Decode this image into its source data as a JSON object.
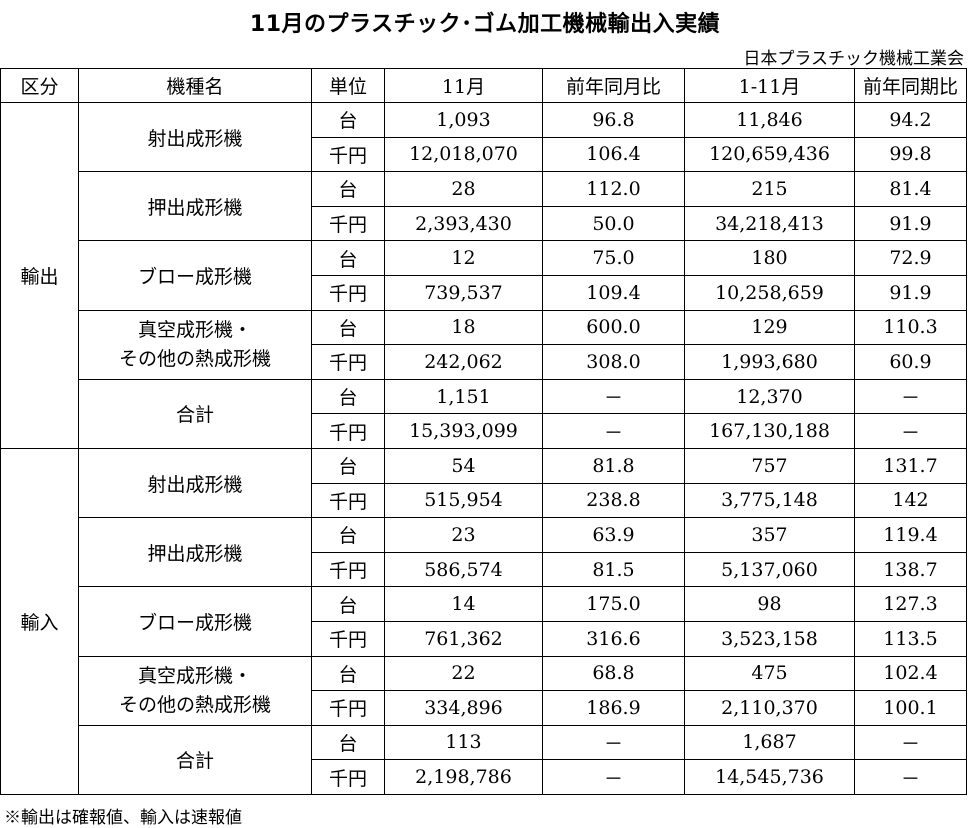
{
  "title": "11月のプラスチック･ゴム加工機械輸出入実績",
  "source": "日本プラスチック機械工業会",
  "headers": [
    "区分",
    "機種名",
    "単位",
    "11月",
    "前年同月比",
    "1-11月",
    "前年同期比"
  ],
  "sections": [
    {
      "name": "輸出",
      "machines": [
        {
          "name": [
            "射出成形機"
          ],
          "rows": [
            {
              "unit": "台",
              "month": "1,093",
              "yoy_month": "96.8",
              "ytd": "11,846",
              "yoy_ytd": "94.2"
            },
            {
              "unit": "千円",
              "month": "12,018,070",
              "yoy_month": "106.4",
              "ytd": "120,659,436",
              "yoy_ytd": "99.8"
            }
          ]
        },
        {
          "name": [
            "押出成形機"
          ],
          "rows": [
            {
              "unit": "台",
              "month": "28",
              "yoy_month": "112.0",
              "ytd": "215",
              "yoy_ytd": "81.4"
            },
            {
              "unit": "千円",
              "month": "2,393,430",
              "yoy_month": "50.0",
              "ytd": "34,218,413",
              "yoy_ytd": "91.9"
            }
          ]
        },
        {
          "name": [
            "ブロー成形機"
          ],
          "rows": [
            {
              "unit": "台",
              "month": "12",
              "yoy_month": "75.0",
              "ytd": "180",
              "yoy_ytd": "72.9"
            },
            {
              "unit": "千円",
              "month": "739,537",
              "yoy_month": "109.4",
              "ytd": "10,258,659",
              "yoy_ytd": "91.9"
            }
          ]
        },
        {
          "name": [
            "真空成形機・",
            "その他の熱成形機"
          ],
          "rows": [
            {
              "unit": "台",
              "month": "18",
              "yoy_month": "600.0",
              "ytd": "129",
              "yoy_ytd": "110.3"
            },
            {
              "unit": "千円",
              "month": "242,062",
              "yoy_month": "308.0",
              "ytd": "1,993,680",
              "yoy_ytd": "60.9"
            }
          ]
        },
        {
          "name": [
            "合計"
          ],
          "rows": [
            {
              "unit": "台",
              "month": "1,151",
              "yoy_month": "－",
              "ytd": "12,370",
              "yoy_ytd": "－"
            },
            {
              "unit": "千円",
              "month": "15,393,099",
              "yoy_month": "－",
              "ytd": "167,130,188",
              "yoy_ytd": "－"
            }
          ]
        }
      ]
    },
    {
      "name": "輸入",
      "machines": [
        {
          "name": [
            "射出成形機"
          ],
          "rows": [
            {
              "unit": "台",
              "month": "54",
              "yoy_month": "81.8",
              "ytd": "757",
              "yoy_ytd": "131.7"
            },
            {
              "unit": "千円",
              "month": "515,954",
              "yoy_month": "238.8",
              "ytd": "3,775,148",
              "yoy_ytd": "142"
            }
          ]
        },
        {
          "name": [
            "押出成形機"
          ],
          "rows": [
            {
              "unit": "台",
              "month": "23",
              "yoy_month": "63.9",
              "ytd": "357",
              "yoy_ytd": "119.4"
            },
            {
              "unit": "千円",
              "month": "586,574",
              "yoy_month": "81.5",
              "ytd": "5,137,060",
              "yoy_ytd": "138.7"
            }
          ]
        },
        {
          "name": [
            "ブロー成形機"
          ],
          "rows": [
            {
              "unit": "台",
              "month": "14",
              "yoy_month": "175.0",
              "ytd": "98",
              "yoy_ytd": "127.3"
            },
            {
              "unit": "千円",
              "month": "761,362",
              "yoy_month": "316.6",
              "ytd": "3,523,158",
              "yoy_ytd": "113.5"
            }
          ]
        },
        {
          "name": [
            "真空成形機・",
            "その他の熱成形機"
          ],
          "rows": [
            {
              "unit": "台",
              "month": "22",
              "yoy_month": "68.8",
              "ytd": "475",
              "yoy_ytd": "102.4"
            },
            {
              "unit": "千円",
              "month": "334,896",
              "yoy_month": "186.9",
              "ytd": "2,110,370",
              "yoy_ytd": "100.1"
            }
          ]
        },
        {
          "name": [
            "合計"
          ],
          "rows": [
            {
              "unit": "台",
              "month": "113",
              "yoy_month": "－",
              "ytd": "1,687",
              "yoy_ytd": "－"
            },
            {
              "unit": "千円",
              "month": "2,198,786",
              "yoy_month": "－",
              "ytd": "14,545,736",
              "yoy_ytd": "－"
            }
          ]
        }
      ]
    }
  ],
  "note": "※輸出は確報値、輸入は速報値"
}
